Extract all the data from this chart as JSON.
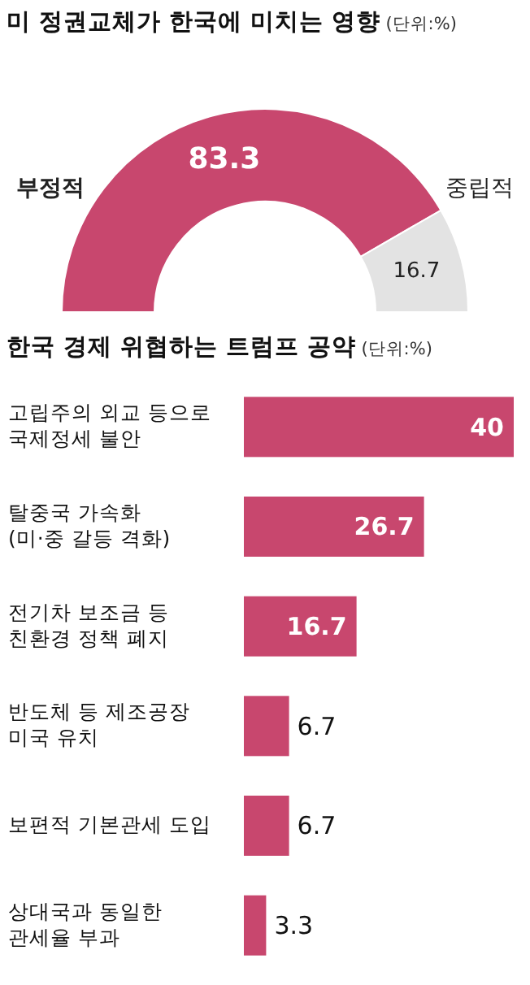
{
  "chart_data": [
    {
      "type": "donut",
      "title": "미 정권교체가 한국에 미치는 영향",
      "subtitle": "(단위:%)",
      "categories": [
        "부정적",
        "중립적"
      ],
      "values": [
        83.3,
        16.7
      ],
      "colors": [
        "#c8476e",
        "#e3e3e3"
      ],
      "data_labels": true
    },
    {
      "type": "bar",
      "orientation": "horizontal",
      "title": "한국 경제 위협하는 트럼프 공약",
      "subtitle": "(단위:%)",
      "categories": [
        "고립주의 외교 등으로\n국제정세 불안",
        "탈중국 가속화\n(미·중 갈등 격화)",
        "전기차 보조금 등\n친환경 정책 폐지",
        "반도체 등 제조공장\n미국 유치",
        "보편적 기본관세 도입",
        "상대국과 동일한\n관세율 부과"
      ],
      "values": [
        40,
        26.7,
        16.7,
        6.7,
        6.7,
        3.3
      ],
      "color": "#c8476e",
      "data_labels": true
    }
  ]
}
